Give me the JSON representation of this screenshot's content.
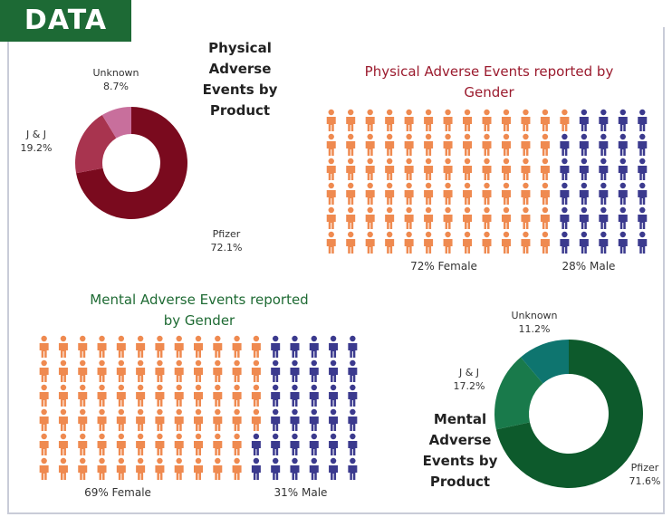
{
  "header": {
    "title": "DATA"
  },
  "chart_data": [
    {
      "type": "donut",
      "title": "Physical Adverse Events by Product",
      "categories": [
        "Pfizer",
        "J & J",
        "Unknown"
      ],
      "values": [
        72.1,
        19.2,
        8.7
      ],
      "value_labels": [
        "72.1%",
        "19.2%",
        "8.7%"
      ],
      "colors": [
        "#7a0a1e",
        "#a8344f",
        "#c86f9c"
      ]
    },
    {
      "type": "pictograph",
      "title": "Physical Adverse Events reported by Gender",
      "title_color": "#9b1b2e",
      "series": [
        {
          "label": "72% Female",
          "value": 72,
          "color": "#ef8a50"
        },
        {
          "label": "28% Male",
          "value": 28,
          "color": "#3b3a8e"
        }
      ]
    },
    {
      "type": "pictograph",
      "title": "Mental Adverse Events reported by Gender",
      "title_color": "#1f6b34",
      "series": [
        {
          "label": "69% Female",
          "value": 69,
          "color": "#ef8a50"
        },
        {
          "label": "31% Male",
          "value": 31,
          "color": "#3b3a8e"
        }
      ]
    },
    {
      "type": "donut",
      "title": "Mental Adverse Events by Product",
      "categories": [
        "Pfizer",
        "J & J",
        "Unknown"
      ],
      "values": [
        71.6,
        17.2,
        11.2
      ],
      "value_labels": [
        "71.6%",
        "17.2%",
        "11.2%"
      ],
      "colors": [
        "#0d5a2c",
        "#197a4b",
        "#0e756f"
      ]
    }
  ]
}
